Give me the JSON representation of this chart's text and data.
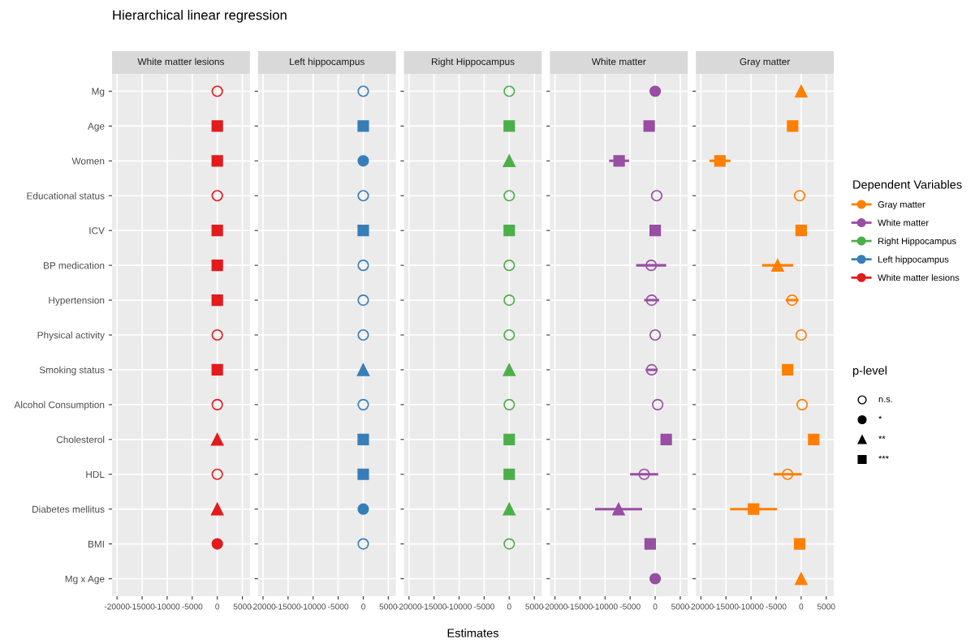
{
  "chart_data": [
    {
      "type": "scatter",
      "orientation": "horizontal",
      "title": "White matter lesions",
      "annotations": [
        "Hierarchical linear regression"
      ],
      "categories": [
        "Mg",
        "Age",
        "Women",
        "Educational status",
        "ICV",
        "BP medication",
        "Hypertension",
        "Physical activity",
        "Smoking status",
        "Alcohol Consumption",
        "Cholesterol",
        "HDL",
        "Diabetes mellitus",
        "BMI",
        "Mg x Age"
      ],
      "xlim": [
        -21000,
        6500
      ],
      "xticks": [
        -20000,
        -15000,
        -10000,
        -5000,
        0,
        5000
      ],
      "grid": true,
      "series": [
        {
          "color": "#e41a1c",
          "marker": "circle-open",
          "values": [
            0,
            null,
            null,
            0,
            null,
            null,
            null,
            0,
            null,
            0,
            null,
            0,
            null,
            null,
            null
          ]
        },
        {
          "color": "#e41a1c",
          "marker": "circle",
          "values": [
            null,
            null,
            null,
            null,
            null,
            null,
            null,
            null,
            null,
            null,
            null,
            null,
            null,
            0,
            null
          ]
        },
        {
          "color": "#e41a1c",
          "marker": "triangle",
          "values": [
            null,
            null,
            null,
            null,
            null,
            null,
            null,
            null,
            null,
            null,
            0,
            null,
            0,
            null,
            null
          ]
        },
        {
          "color": "#e41a1c",
          "marker": "square",
          "values": [
            null,
            0,
            0,
            null,
            0,
            0,
            0,
            null,
            0,
            null,
            null,
            null,
            null,
            null,
            null
          ]
        }
      ]
    },
    {
      "type": "scatter",
      "orientation": "horizontal",
      "title": "Left hippocampus",
      "tick_labels": "x",
      "xlim": [
        -21000,
        6500
      ],
      "xticks": [
        -20000,
        -15000,
        -10000,
        -5000,
        0,
        5000
      ],
      "grid": true,
      "series": [
        {
          "color": "#377eb8",
          "marker": "circle-open",
          "values": [
            0,
            null,
            null,
            0,
            null,
            0,
            0,
            0,
            null,
            0,
            null,
            null,
            null,
            0,
            null
          ]
        },
        {
          "color": "#377eb8",
          "marker": "circle",
          "values": [
            null,
            null,
            0,
            null,
            null,
            null,
            null,
            null,
            null,
            null,
            null,
            null,
            0,
            null,
            null
          ]
        },
        {
          "color": "#377eb8",
          "marker": "triangle",
          "values": [
            null,
            null,
            null,
            null,
            null,
            null,
            null,
            null,
            0,
            null,
            null,
            null,
            null,
            null,
            null
          ]
        },
        {
          "color": "#377eb8",
          "marker": "square",
          "values": [
            null,
            0,
            null,
            null,
            0,
            null,
            null,
            null,
            null,
            null,
            0,
            0,
            null,
            null,
            null
          ]
        }
      ]
    },
    {
      "type": "scatter",
      "orientation": "horizontal",
      "title": "Right Hippocampus",
      "xlabel": "Estimates",
      "tick_labels": "x",
      "xlim": [
        -21000,
        6500
      ],
      "xticks": [
        -20000,
        -15000,
        -10000,
        -5000,
        0,
        5000
      ],
      "grid": true,
      "series": [
        {
          "color": "#4daf4a",
          "marker": "circle-open",
          "values": [
            0,
            null,
            null,
            0,
            null,
            0,
            0,
            0,
            null,
            0,
            null,
            null,
            null,
            0,
            null
          ]
        },
        {
          "color": "#4daf4a",
          "marker": "triangle",
          "values": [
            null,
            null,
            0,
            null,
            null,
            null,
            null,
            null,
            0,
            null,
            null,
            null,
            0,
            null,
            null
          ]
        },
        {
          "color": "#4daf4a",
          "marker": "square",
          "values": [
            null,
            0,
            null,
            null,
            0,
            null,
            null,
            null,
            null,
            null,
            0,
            0,
            null,
            null,
            null
          ]
        }
      ]
    },
    {
      "type": "scatter",
      "orientation": "horizontal",
      "title": "White matter",
      "tick_labels": "x",
      "xlim": [
        -21000,
        6500
      ],
      "xticks": [
        -20000,
        -15000,
        -10000,
        -5000,
        0,
        5000
      ],
      "grid": true,
      "series": [
        {
          "color": "#984ea3",
          "marker": "circle-open",
          "values": [
            null,
            null,
            null,
            300,
            null,
            -800,
            -700,
            0,
            -700,
            500,
            null,
            -2200,
            null,
            null,
            null
          ],
          "errors": [
            null,
            null,
            null,
            null,
            null,
            3000,
            1500,
            null,
            1200,
            null,
            null,
            2800,
            null,
            null,
            null
          ]
        },
        {
          "color": "#984ea3",
          "marker": "circle",
          "values": [
            0,
            null,
            null,
            null,
            null,
            null,
            null,
            null,
            null,
            null,
            null,
            null,
            null,
            null,
            0
          ]
        },
        {
          "color": "#984ea3",
          "marker": "triangle",
          "values": [
            null,
            null,
            null,
            null,
            null,
            null,
            null,
            null,
            null,
            null,
            null,
            null,
            -7300,
            null,
            null
          ],
          "errors": [
            null,
            null,
            null,
            null,
            null,
            null,
            null,
            null,
            null,
            null,
            null,
            null,
            4700,
            null,
            null
          ]
        },
        {
          "color": "#984ea3",
          "marker": "square",
          "values": [
            null,
            -1200,
            -7200,
            null,
            0,
            null,
            null,
            null,
            null,
            null,
            2200,
            null,
            null,
            -1000,
            null
          ],
          "errors": [
            null,
            null,
            2000,
            null,
            null,
            null,
            null,
            null,
            null,
            null,
            null,
            null,
            null,
            null,
            null
          ]
        }
      ]
    },
    {
      "type": "scatter",
      "orientation": "horizontal",
      "title": "Gray matter",
      "tick_labels": "x",
      "xlim": [
        -21000,
        6500
      ],
      "xticks": [
        -20000,
        -15000,
        -10000,
        -5000,
        0,
        5000
      ],
      "grid": true,
      "series": [
        {
          "color": "#ff7f00",
          "marker": "circle-open",
          "values": [
            null,
            null,
            null,
            -300,
            null,
            null,
            -1800,
            0,
            null,
            200,
            null,
            -2700,
            null,
            null,
            null
          ],
          "errors": [
            null,
            null,
            null,
            null,
            null,
            null,
            1300,
            null,
            null,
            null,
            null,
            2800,
            null,
            null,
            null
          ]
        },
        {
          "color": "#ff7f00",
          "marker": "triangle",
          "values": [
            0,
            null,
            null,
            null,
            null,
            -4700,
            null,
            null,
            null,
            null,
            null,
            null,
            null,
            null,
            0
          ],
          "errors": [
            null,
            null,
            null,
            null,
            null,
            3100,
            null,
            null,
            null,
            null,
            null,
            null,
            null,
            null,
            null
          ]
        },
        {
          "color": "#ff7f00",
          "marker": "square",
          "values": [
            null,
            -1700,
            -16200,
            null,
            0,
            null,
            null,
            null,
            -2700,
            null,
            2500,
            null,
            -9500,
            -300,
            null
          ],
          "errors": [
            null,
            null,
            2100,
            null,
            null,
            null,
            null,
            null,
            1000,
            null,
            null,
            null,
            4700,
            null,
            null
          ]
        }
      ]
    },
    {
      "type": "other",
      "title": "p-level",
      "categories": [
        "n.s.",
        "*",
        "**",
        "***"
      ]
    },
    {
      "type": "other",
      "title": "Dependent Variables",
      "categories": [
        "Gray matter",
        "White matter",
        "Right Hippocampus",
        "Left hippocampus",
        "White matter lesions"
      ],
      "colors": [
        "#ff7f00",
        "#984ea3",
        "#4daf4a",
        "#377eb8",
        "#e41a1c"
      ]
    }
  ]
}
